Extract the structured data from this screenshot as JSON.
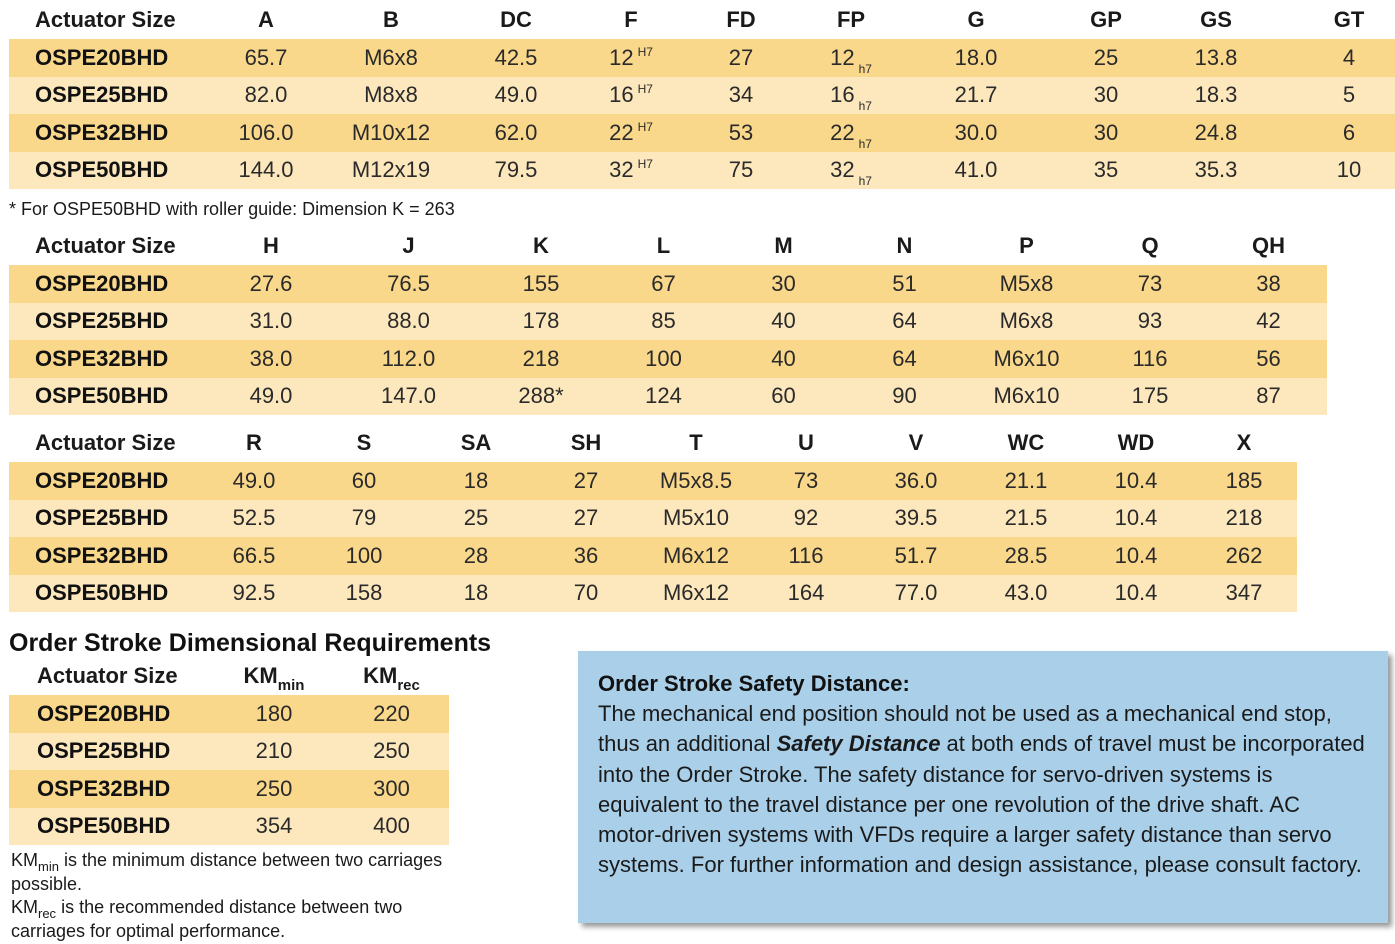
{
  "tables": [
    {
      "columns": [
        "Actuator Size",
        "A",
        "B",
        "DC",
        "F",
        "FD",
        "FP",
        "G",
        "GP",
        "GS",
        "GT"
      ],
      "rows": [
        [
          {
            "t": "OSPE20BHD"
          },
          {
            "t": "65.7"
          },
          {
            "t": "M6x8"
          },
          {
            "t": "42.5"
          },
          {
            "t": "12",
            "sup": "H7"
          },
          {
            "t": "27"
          },
          {
            "t": "12",
            "sub": "h7"
          },
          {
            "t": "18.0"
          },
          {
            "t": "25"
          },
          {
            "t": "13.8"
          },
          {
            "t": "4"
          }
        ],
        [
          {
            "t": "OSPE25BHD"
          },
          {
            "t": "82.0"
          },
          {
            "t": "M8x8"
          },
          {
            "t": "49.0"
          },
          {
            "t": "16",
            "sup": "H7"
          },
          {
            "t": "34"
          },
          {
            "t": "16",
            "sub": "h7"
          },
          {
            "t": "21.7"
          },
          {
            "t": "30"
          },
          {
            "t": "18.3"
          },
          {
            "t": "5"
          }
        ],
        [
          {
            "t": "OSPE32BHD"
          },
          {
            "t": "106.0"
          },
          {
            "t": "M10x12"
          },
          {
            "t": "62.0"
          },
          {
            "t": "22",
            "sup": "H7"
          },
          {
            "t": "53"
          },
          {
            "t": "22",
            "sub": "h7"
          },
          {
            "t": "30.0"
          },
          {
            "t": "30"
          },
          {
            "t": "24.8"
          },
          {
            "t": "6"
          }
        ],
        [
          {
            "t": "OSPE50BHD"
          },
          {
            "t": "144.0"
          },
          {
            "t": "M12x19"
          },
          {
            "t": "79.5"
          },
          {
            "t": "32",
            "sup": "H7"
          },
          {
            "t": "75"
          },
          {
            "t": "32",
            "sub": "h7"
          },
          {
            "t": "41.0"
          },
          {
            "t": "35"
          },
          {
            "t": "35.3"
          },
          {
            "t": "10"
          }
        ]
      ]
    },
    {
      "columns": [
        "Actuator Size",
        "H",
        "J",
        "K",
        "L",
        "M",
        "N",
        "P",
        "Q",
        "QH"
      ],
      "rows": [
        [
          {
            "t": "OSPE20BHD"
          },
          {
            "t": "27.6"
          },
          {
            "t": "76.5"
          },
          {
            "t": "155"
          },
          {
            "t": "67"
          },
          {
            "t": "30"
          },
          {
            "t": "51"
          },
          {
            "t": "M5x8"
          },
          {
            "t": "73"
          },
          {
            "t": "38"
          }
        ],
        [
          {
            "t": "OSPE25BHD"
          },
          {
            "t": "31.0"
          },
          {
            "t": "88.0"
          },
          {
            "t": "178"
          },
          {
            "t": "85"
          },
          {
            "t": "40"
          },
          {
            "t": "64"
          },
          {
            "t": "M6x8"
          },
          {
            "t": "93"
          },
          {
            "t": "42"
          }
        ],
        [
          {
            "t": "OSPE32BHD"
          },
          {
            "t": "38.0"
          },
          {
            "t": "112.0"
          },
          {
            "t": "218"
          },
          {
            "t": "100"
          },
          {
            "t": "40"
          },
          {
            "t": "64"
          },
          {
            "t": "M6x10"
          },
          {
            "t": "116"
          },
          {
            "t": "56"
          }
        ],
        [
          {
            "t": "OSPE50BHD"
          },
          {
            "t": "49.0"
          },
          {
            "t": "147.0"
          },
          {
            "t": "288*"
          },
          {
            "t": "124"
          },
          {
            "t": "60"
          },
          {
            "t": "90"
          },
          {
            "t": "M6x10"
          },
          {
            "t": "175"
          },
          {
            "t": "87"
          }
        ]
      ]
    },
    {
      "columns": [
        "Actuator Size",
        "R",
        "S",
        "SA",
        "SH",
        "T",
        "U",
        "V",
        "WC",
        "WD",
        "X"
      ],
      "rows": [
        [
          {
            "t": "OSPE20BHD"
          },
          {
            "t": "49.0"
          },
          {
            "t": "60"
          },
          {
            "t": "18"
          },
          {
            "t": "27"
          },
          {
            "t": "M5x8.5"
          },
          {
            "t": "73"
          },
          {
            "t": "36.0"
          },
          {
            "t": "21.1"
          },
          {
            "t": "10.4"
          },
          {
            "t": "185"
          }
        ],
        [
          {
            "t": "OSPE25BHD"
          },
          {
            "t": "52.5"
          },
          {
            "t": "79"
          },
          {
            "t": "25"
          },
          {
            "t": "27"
          },
          {
            "t": "M5x10"
          },
          {
            "t": "92"
          },
          {
            "t": "39.5"
          },
          {
            "t": "21.5"
          },
          {
            "t": "10.4"
          },
          {
            "t": "218"
          }
        ],
        [
          {
            "t": "OSPE32BHD"
          },
          {
            "t": "66.5"
          },
          {
            "t": "100"
          },
          {
            "t": "28"
          },
          {
            "t": "36"
          },
          {
            "t": "M6x12"
          },
          {
            "t": "116"
          },
          {
            "t": "51.7"
          },
          {
            "t": "28.5"
          },
          {
            "t": "10.4"
          },
          {
            "t": "262"
          }
        ],
        [
          {
            "t": "OSPE50BHD"
          },
          {
            "t": "92.5"
          },
          {
            "t": "158"
          },
          {
            "t": "18"
          },
          {
            "t": "70"
          },
          {
            "t": "M6x12"
          },
          {
            "t": "164"
          },
          {
            "t": "77.0"
          },
          {
            "t": "43.0"
          },
          {
            "t": "10.4"
          },
          {
            "t": "347"
          }
        ]
      ]
    }
  ],
  "footnote": "* For OSPE50BHD with roller guide: Dimension K = 263",
  "order_stroke": {
    "title": "Order Stroke Dimensional Requirements",
    "col_size": "Actuator Size",
    "col_min": {
      "base": "KM",
      "sub": "min"
    },
    "col_rec": {
      "base": "KM",
      "sub": "rec"
    },
    "rows": [
      [
        "OSPE20BHD",
        "180",
        "220"
      ],
      [
        "OSPE25BHD",
        "210",
        "250"
      ],
      [
        "OSPE32BHD",
        "250",
        "300"
      ],
      [
        "OSPE50BHD",
        "354",
        "400"
      ]
    ],
    "def_min": {
      "base": "KM",
      "sub": "min",
      "text": " is the minimum distance between two carriages possible."
    },
    "def_rec": {
      "base": "KM",
      "sub": "rec",
      "text": " is the recommended distance between two carriages for optimal performance."
    }
  },
  "safety": {
    "title": "Order Stroke Safety Distance:",
    "text_before": "The mechanical end position should not be used as a mechanical end stop, thus an additional ",
    "emphasis": "Safety Distance",
    "text_after": " at both ends of travel must be incorporated into the Order Stroke. The safety distance for servo-driven systems is equivalent to the travel distance per one revolution of the drive shaft. AC motor-driven systems with VFDs require a larger safety distance than servo systems. For further information and design assistance, please consult factory."
  },
  "colors": {
    "row_dark": "#fad88b",
    "row_light": "#fde8bd",
    "box_bg": "#a9cfe9"
  }
}
